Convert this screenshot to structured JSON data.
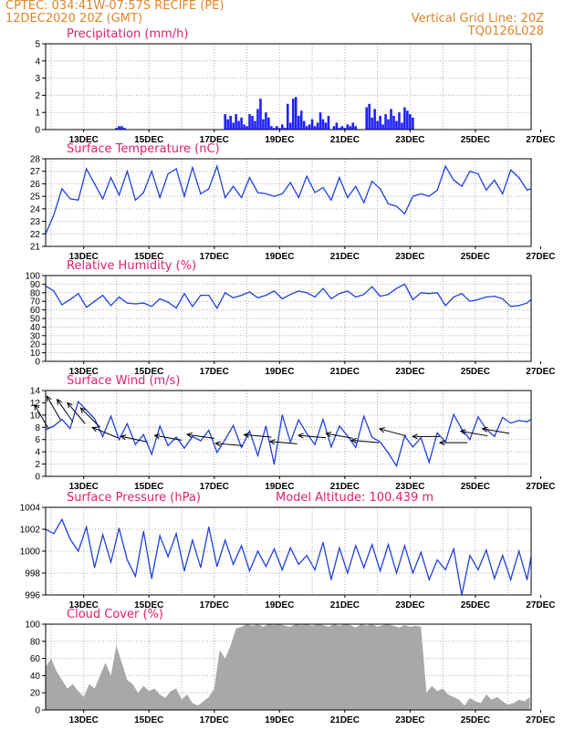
{
  "header": {
    "line1_left": "CPTEC:   034:41W-07:57S   RECIFE (PE)",
    "line2_left": "12DEC2020 20Z (GMT)",
    "line1_right": "Vertical Grid Line: 20Z",
    "line2_right": "TQ0126L028"
  },
  "colors": {
    "header": "#e0842a",
    "title": "#e0206e",
    "line": "#2040e0",
    "bar": "#2020ff",
    "cloud": "#a8a8a8",
    "grid": "#b0b0b0"
  },
  "x_axis": {
    "start_hour": 0,
    "end_hour": 357,
    "tick_labels": [
      "13DEC",
      "15DEC",
      "17DEC",
      "19DEC",
      "21DEC",
      "23DEC",
      "25DEC",
      "27DEC"
    ],
    "tick_hours": [
      28,
      76,
      124,
      172,
      220,
      268,
      316,
      364
    ]
  },
  "chart_data": [
    {
      "type": "bar",
      "title": "Precipitation (mm/h)",
      "ylim": [
        0,
        5
      ],
      "yticks": [
        0,
        1,
        2,
        3,
        4,
        5
      ],
      "x_hours": [
        52,
        54,
        56,
        58,
        132,
        134,
        136,
        138,
        140,
        142,
        144,
        146,
        148,
        150,
        152,
        154,
        156,
        158,
        160,
        162,
        164,
        166,
        168,
        170,
        172,
        174,
        176,
        178,
        180,
        182,
        184,
        186,
        188,
        190,
        192,
        194,
        196,
        198,
        200,
        202,
        204,
        206,
        208,
        212,
        214,
        216,
        218,
        220,
        222,
        224,
        226,
        228,
        236,
        238,
        240,
        242,
        244,
        246,
        248,
        250,
        252,
        254,
        256,
        258,
        260,
        262,
        264,
        266,
        268,
        270
      ],
      "values": [
        0.1,
        0.2,
        0.2,
        0.1,
        0.9,
        0.6,
        0.8,
        0.4,
        0.9,
        0.5,
        0.7,
        0.3,
        0.2,
        0.9,
        0.8,
        0.5,
        1.2,
        1.8,
        0.6,
        1.0,
        0.7,
        0.2,
        0.1,
        0.2,
        0.1,
        0.3,
        0.1,
        1.5,
        0.4,
        1.8,
        1.9,
        0.8,
        1.1,
        0.5,
        0.2,
        0.3,
        0.6,
        0.2,
        0.4,
        1.0,
        0.6,
        0.4,
        0.8,
        0.2,
        0.4,
        0.1,
        0.2,
        0.1,
        0.3,
        0.2,
        0.4,
        0.2,
        1.3,
        1.5,
        0.7,
        1.2,
        0.5,
        0.8,
        0.3,
        0.9,
        0.6,
        1.2,
        0.8,
        0.5,
        1.0,
        0.4,
        1.3,
        1.1,
        0.9,
        0.7
      ]
    },
    {
      "type": "line",
      "title": "Surface Temperature (nC)",
      "ylim": [
        21,
        28
      ],
      "yticks": [
        21,
        22,
        23,
        24,
        25,
        26,
        27,
        28
      ],
      "x_hours": [
        0,
        6,
        12,
        18,
        24,
        30,
        36,
        42,
        48,
        54,
        60,
        66,
        72,
        78,
        84,
        90,
        96,
        102,
        108,
        114,
        120,
        126,
        132,
        138,
        144,
        150,
        156,
        162,
        168,
        174,
        180,
        186,
        192,
        198,
        204,
        210,
        216,
        222,
        228,
        234,
        240,
        246,
        252,
        258,
        264,
        270,
        276,
        282,
        288,
        294,
        300,
        306,
        312,
        318,
        324,
        330,
        336,
        342,
        348,
        354,
        357
      ],
      "values": [
        22.0,
        23.5,
        25.6,
        24.8,
        24.7,
        27.2,
        26.0,
        24.8,
        26.5,
        25.1,
        27.0,
        24.7,
        25.3,
        27.0,
        24.9,
        26.8,
        27.2,
        25.0,
        27.3,
        25.2,
        25.6,
        27.4,
        24.9,
        25.8,
        24.9,
        26.5,
        25.3,
        25.2,
        25.0,
        25.2,
        26.1,
        24.9,
        26.6,
        25.3,
        25.7,
        24.7,
        26.5,
        24.9,
        25.8,
        24.5,
        26.2,
        25.6,
        24.4,
        24.2,
        23.6,
        25.0,
        25.2,
        25.0,
        25.5,
        27.4,
        26.3,
        25.8,
        27.0,
        26.8,
        25.5,
        26.3,
        25.2,
        27.1,
        26.5,
        25.5,
        25.6
      ]
    },
    {
      "type": "line",
      "title": "Relative Humidity (%)",
      "ylim": [
        0,
        100
      ],
      "yticks": [
        0,
        10,
        20,
        30,
        40,
        50,
        60,
        70,
        80,
        90,
        100
      ],
      "x_hours": [
        0,
        6,
        12,
        18,
        24,
        30,
        36,
        42,
        48,
        54,
        60,
        66,
        72,
        78,
        84,
        90,
        96,
        102,
        108,
        114,
        120,
        126,
        132,
        138,
        144,
        150,
        156,
        162,
        168,
        174,
        180,
        186,
        192,
        198,
        204,
        210,
        216,
        222,
        228,
        234,
        240,
        246,
        252,
        258,
        264,
        270,
        276,
        282,
        288,
        294,
        300,
        306,
        312,
        318,
        324,
        330,
        336,
        342,
        348,
        354,
        357
      ],
      "values": [
        88,
        82,
        66,
        72,
        79,
        63,
        70,
        77,
        65,
        75,
        68,
        67,
        68,
        64,
        73,
        69,
        62,
        79,
        64,
        77,
        77,
        62,
        80,
        74,
        77,
        81,
        74,
        77,
        82,
        73,
        78,
        82,
        80,
        75,
        85,
        73,
        79,
        82,
        75,
        78,
        87,
        76,
        78,
        85,
        90,
        72,
        80,
        79,
        80,
        65,
        75,
        79,
        70,
        72,
        75,
        76,
        73,
        64,
        65,
        68,
        72
      ]
    },
    {
      "type": "line",
      "title": "Surface Wind (m/s)",
      "ylim": [
        0,
        14
      ],
      "yticks": [
        0,
        2,
        4,
        6,
        8,
        10,
        12,
        14
      ],
      "x_hours": [
        0,
        6,
        12,
        18,
        24,
        30,
        36,
        42,
        48,
        54,
        60,
        66,
        72,
        78,
        84,
        90,
        96,
        102,
        108,
        114,
        120,
        126,
        132,
        138,
        144,
        150,
        156,
        162,
        168,
        174,
        180,
        186,
        192,
        198,
        204,
        210,
        216,
        222,
        228,
        234,
        240,
        246,
        252,
        258,
        264,
        270,
        276,
        282,
        288,
        294,
        300,
        306,
        312,
        318,
        324,
        330,
        336,
        342,
        348,
        354,
        357
      ],
      "values": [
        7.6,
        8.2,
        9.3,
        7.8,
        12.2,
        10.8,
        9.4,
        6.5,
        9.8,
        6.0,
        8.6,
        5.2,
        6.8,
        3.6,
        8.2,
        5.0,
        6.4,
        4.6,
        6.5,
        5.8,
        7.5,
        3.9,
        6.0,
        8.3,
        4.7,
        7.4,
        3.4,
        8.2,
        2.0,
        10.0,
        5.6,
        9.2,
        7.0,
        5.2,
        9.3,
        4.8,
        8.2,
        6.6,
        4.7,
        9.8,
        6.4,
        5.6,
        3.8,
        1.7,
        6.6,
        4.8,
        6.3,
        2.3,
        7.1,
        5.6,
        10.1,
        7.7,
        6.0,
        9.7,
        7.7,
        6.5,
        9.6,
        8.7,
        9.1,
        8.9,
        9.3
      ],
      "barbs": [
        {
          "hour": 2,
          "speed": 7.8,
          "dir_deg": 30
        },
        {
          "hour": 11,
          "speed": 9.2,
          "dir_deg": 30
        },
        {
          "hour": 20,
          "speed": 8.9,
          "dir_deg": 35
        },
        {
          "hour": 29,
          "speed": 8.6,
          "dir_deg": 40
        },
        {
          "hour": 40,
          "speed": 8.0,
          "dir_deg": 45
        },
        {
          "hour": 53,
          "speed": 6.3,
          "dir_deg": 68
        },
        {
          "hour": 75,
          "speed": 5.6,
          "dir_deg": 78
        },
        {
          "hour": 100,
          "speed": 5.9,
          "dir_deg": 80
        },
        {
          "hour": 124,
          "speed": 6.2,
          "dir_deg": 82
        },
        {
          "hour": 145,
          "speed": 5.0,
          "dir_deg": 85
        },
        {
          "hour": 166,
          "speed": 6.4,
          "dir_deg": 85
        },
        {
          "hour": 185,
          "speed": 5.3,
          "dir_deg": 85
        },
        {
          "hour": 206,
          "speed": 6.3,
          "dir_deg": 85
        },
        {
          "hour": 226,
          "speed": 6.2,
          "dir_deg": 80
        },
        {
          "hour": 245,
          "speed": 5.5,
          "dir_deg": 85
        },
        {
          "hour": 265,
          "speed": 6.6,
          "dir_deg": 75
        },
        {
          "hour": 290,
          "speed": 6.5,
          "dir_deg": 90
        },
        {
          "hour": 310,
          "speed": 5.5,
          "dir_deg": 90
        },
        {
          "hour": 325,
          "speed": 6.6,
          "dir_deg": 80
        },
        {
          "hour": 341,
          "speed": 7.0,
          "dir_deg": 80
        }
      ]
    },
    {
      "type": "line",
      "title": "Surface Pressure (hPa)",
      "annotation": "Model Altitude: 100.439  m",
      "ylim": [
        996,
        1004
      ],
      "yticks": [
        996,
        998,
        1000,
        1002,
        1004
      ],
      "x_hours": [
        0,
        6,
        12,
        18,
        24,
        30,
        36,
        42,
        48,
        54,
        60,
        66,
        72,
        78,
        84,
        90,
        96,
        102,
        108,
        114,
        120,
        126,
        132,
        138,
        144,
        150,
        156,
        162,
        168,
        174,
        180,
        186,
        192,
        198,
        204,
        210,
        216,
        222,
        228,
        234,
        240,
        246,
        252,
        258,
        264,
        270,
        276,
        282,
        288,
        294,
        300,
        306,
        312,
        318,
        324,
        330,
        336,
        342,
        348,
        354,
        357
      ],
      "values": [
        1002.0,
        1001.6,
        1002.9,
        1001.1,
        1000.0,
        1002.2,
        998.5,
        1001.5,
        999.0,
        1002.1,
        999.2,
        997.7,
        1001.8,
        997.5,
        1001.4,
        999.5,
        1001.6,
        998.2,
        1001.0,
        998.5,
        1002.2,
        998.6,
        1001.0,
        998.8,
        1000.5,
        998.2,
        1000.0,
        998.6,
        1000.2,
        998.3,
        1000.3,
        998.8,
        999.6,
        998.3,
        1000.8,
        997.4,
        1000.3,
        998.0,
        1000.5,
        998.5,
        1000.6,
        998.2,
        1000.6,
        998.0,
        1000.5,
        998.0,
        999.9,
        997.4,
        999.2,
        998.3,
        1000.2,
        996.0,
        999.6,
        998.3,
        1000.1,
        997.5,
        999.6,
        997.4,
        1000.0,
        997.4,
        999.5
      ]
    },
    {
      "type": "area",
      "title": "Cloud Cover (%)",
      "ylim": [
        0,
        100
      ],
      "yticks": [
        0,
        20,
        40,
        60,
        80,
        100
      ],
      "x_hours": [
        0,
        4,
        8,
        12,
        16,
        20,
        24,
        28,
        32,
        36,
        40,
        44,
        48,
        52,
        56,
        60,
        64,
        68,
        72,
        76,
        80,
        84,
        88,
        92,
        96,
        100,
        104,
        108,
        112,
        116,
        120,
        124,
        128,
        132,
        136,
        140,
        144,
        148,
        152,
        156,
        160,
        164,
        168,
        172,
        176,
        180,
        184,
        188,
        192,
        196,
        200,
        204,
        208,
        212,
        216,
        220,
        224,
        228,
        232,
        236,
        240,
        244,
        248,
        252,
        256,
        260,
        264,
        268,
        272,
        276,
        280,
        284,
        288,
        292,
        296,
        300,
        304,
        308,
        312,
        316,
        320,
        324,
        328,
        332,
        336,
        340,
        344,
        348,
        352,
        356
      ],
      "values": [
        50,
        60,
        45,
        35,
        25,
        30,
        22,
        15,
        30,
        25,
        40,
        55,
        40,
        75,
        55,
        35,
        30,
        20,
        28,
        22,
        25,
        18,
        14,
        22,
        25,
        12,
        18,
        8,
        5,
        10,
        15,
        25,
        70,
        60,
        75,
        95,
        97,
        100,
        98,
        100,
        97,
        100,
        99,
        100,
        98,
        97,
        100,
        99,
        100,
        98,
        100,
        99,
        97,
        100,
        98,
        100,
        99,
        96,
        100,
        98,
        100,
        97,
        99,
        100,
        98,
        96,
        99,
        97,
        98,
        97,
        20,
        28,
        22,
        25,
        18,
        15,
        12,
        5,
        14,
        10,
        8,
        18,
        12,
        15,
        10,
        6,
        8,
        12,
        10,
        15
      ]
    }
  ]
}
